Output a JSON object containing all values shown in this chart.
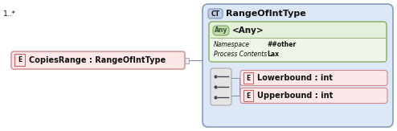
{
  "bg_color": "#ffffff",
  "fig_width": 4.94,
  "fig_height": 1.63,
  "dpi": 100,
  "main_element_label": "CopiesRange : RangeOfIntType",
  "main_element_e_label": "E",
  "main_element_cardinality": "1..*",
  "ct_box_label": "RangeOfIntType",
  "ct_badge": "CT",
  "ct_bg": "#dde8f6",
  "ct_border": "#8899bb",
  "any_badge": "Any",
  "any_label": "<Any>",
  "any_bg": "#e4f0dc",
  "any_badge_bg": "#c0dca8",
  "any_border": "#88aa66",
  "any_detail_label1": "Namespace",
  "any_detail_value1": "##other",
  "any_detail_label2": "Process Contents",
  "any_detail_value2": "Lax",
  "any_detail_bg": "#eef6e8",
  "seq_bg": "#e4e4e4",
  "seq_border": "#aaaaaa",
  "child1_label": "Lowerbound : int",
  "child2_label": "Upperbound : int",
  "child_e_label": "E",
  "child_bg": "#fce8e8",
  "child_border": "#cc8888",
  "element_badge_bg": "#fce8e8",
  "element_badge_border": "#cc6666",
  "main_bg": "#fce8e8",
  "main_border": "#cc8888",
  "text_color": "#111111",
  "line_color": "#8888aa",
  "ct_badge_bg": "#c0cce8",
  "ct_badge_border": "#8899bb"
}
